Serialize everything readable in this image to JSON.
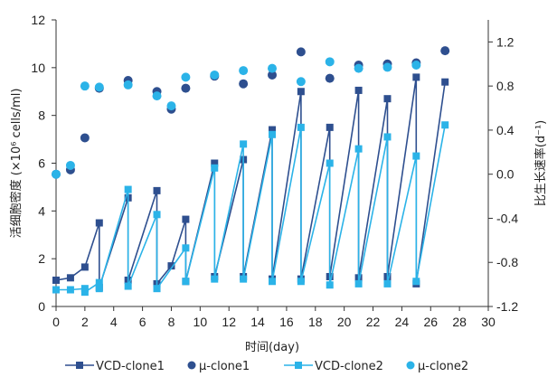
{
  "chart_data": {
    "type": "line",
    "xlabel": "时间(day)",
    "ylabel_left": "活细胞密度 (×10⁶ cells/ml)",
    "ylabel_right": "比生长速率(d⁻¹)",
    "xlim": [
      0,
      30
    ],
    "xticks": [
      0,
      2,
      4,
      6,
      8,
      10,
      12,
      14,
      16,
      18,
      20,
      22,
      24,
      26,
      28,
      30
    ],
    "ylim_left": [
      0,
      12
    ],
    "yticks_left": [
      0,
      2,
      4,
      6,
      8,
      10,
      12
    ],
    "ylim_right": [
      -1.2,
      1.4
    ],
    "yticks_right": [
      "1.2",
      "0.8",
      "0.4",
      "0.0",
      "-0.4",
      "-0.8",
      "-1.2"
    ],
    "legend_position": "bottom",
    "series": [
      {
        "name": "VCD-clone1",
        "axis": "left",
        "kind": "line-marker",
        "marker": "square",
        "color": "#2e4f8f",
        "points": [
          [
            0,
            1.1
          ],
          [
            1,
            1.2
          ],
          [
            2,
            1.65
          ],
          [
            3,
            3.5
          ],
          [
            3,
            0.8
          ],
          [
            5,
            4.55
          ],
          [
            5,
            1.1
          ],
          [
            7,
            4.85
          ],
          [
            7,
            0.95
          ],
          [
            8,
            1.7
          ],
          [
            9,
            3.65
          ],
          [
            9,
            1.05
          ],
          [
            11,
            6.0
          ],
          [
            11,
            1.25
          ],
          [
            13,
            6.15
          ],
          [
            13,
            1.25
          ],
          [
            15,
            7.4
          ],
          [
            15,
            1.15
          ],
          [
            17,
            9.0
          ],
          [
            17,
            1.15
          ],
          [
            19,
            7.5
          ],
          [
            19,
            1.25
          ],
          [
            21,
            9.05
          ],
          [
            21,
            1.2
          ],
          [
            23,
            8.7
          ],
          [
            23,
            1.25
          ],
          [
            25,
            9.6
          ],
          [
            25,
            0.95
          ],
          [
            27,
            9.4
          ]
        ]
      },
      {
        "name": "μ-clone1",
        "axis": "right",
        "kind": "scatter",
        "marker": "circle",
        "color": "#2e4f8f",
        "points": [
          [
            0,
            0.0
          ],
          [
            1,
            0.04
          ],
          [
            2,
            0.33
          ],
          [
            3,
            0.78
          ],
          [
            5,
            0.85
          ],
          [
            7,
            0.75
          ],
          [
            8,
            0.59
          ],
          [
            9,
            0.78
          ],
          [
            11,
            0.89
          ],
          [
            13,
            0.82
          ],
          [
            15,
            0.9
          ],
          [
            17,
            1.11
          ],
          [
            19,
            0.87
          ],
          [
            21,
            0.99
          ],
          [
            23,
            1.0
          ],
          [
            25,
            1.01
          ],
          [
            27,
            1.12
          ]
        ]
      },
      {
        "name": "VCD-clone2",
        "axis": "left",
        "kind": "line-marker",
        "marker": "square",
        "color": "#2bb3e8",
        "points": [
          [
            0,
            0.7
          ],
          [
            1,
            0.7
          ],
          [
            2,
            0.75
          ],
          [
            2,
            0.6
          ],
          [
            3,
            1.0
          ],
          [
            3,
            0.75
          ],
          [
            5,
            4.9
          ],
          [
            5,
            0.85
          ],
          [
            7,
            3.85
          ],
          [
            7,
            0.75
          ],
          [
            9,
            2.45
          ],
          [
            9,
            1.05
          ],
          [
            11,
            5.8
          ],
          [
            11,
            1.15
          ],
          [
            13,
            6.8
          ],
          [
            13,
            1.15
          ],
          [
            15,
            7.2
          ],
          [
            15,
            1.05
          ],
          [
            17,
            7.5
          ],
          [
            17,
            1.05
          ],
          [
            19,
            6.0
          ],
          [
            19,
            0.9
          ],
          [
            21,
            6.6
          ],
          [
            21,
            0.95
          ],
          [
            23,
            7.1
          ],
          [
            23,
            0.95
          ],
          [
            25,
            6.3
          ],
          [
            25,
            1.05
          ],
          [
            27,
            7.6
          ]
        ]
      },
      {
        "name": "μ-clone2",
        "axis": "right",
        "kind": "scatter",
        "marker": "circle",
        "color": "#2bb3e8",
        "points": [
          [
            0,
            0.0
          ],
          [
            1,
            0.08
          ],
          [
            2,
            0.8
          ],
          [
            3,
            0.79
          ],
          [
            5,
            0.81
          ],
          [
            7,
            0.71
          ],
          [
            8,
            0.62
          ],
          [
            9,
            0.88
          ],
          [
            11,
            0.9
          ],
          [
            13,
            0.94
          ],
          [
            15,
            0.96
          ],
          [
            17,
            0.84
          ],
          [
            19,
            1.02
          ],
          [
            21,
            0.96
          ],
          [
            23,
            0.97
          ],
          [
            25,
            0.99
          ]
        ]
      }
    ]
  }
}
